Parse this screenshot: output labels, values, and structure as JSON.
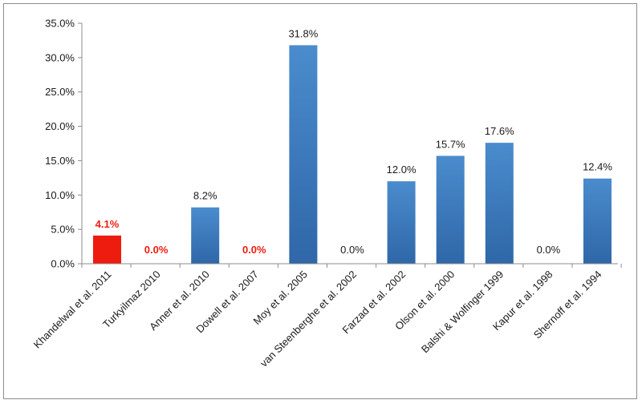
{
  "chart_data": {
    "type": "bar",
    "title": "",
    "xlabel": "",
    "ylabel": "",
    "ylim": [
      0,
      35
    ],
    "y_ticks": [
      "0.0%",
      "5.0%",
      "10.0%",
      "15.0%",
      "20.0%",
      "25.0%",
      "30.0%",
      "35.0%"
    ],
    "categories": [
      "Khandelwal et al. 2011",
      "Turkyilmaz 2010",
      "Anner et al. 2010",
      "Dowell et al. 2007",
      "Moy et al. 2005",
      "van Steenberghe et al. 2002",
      "Farzad et al. 2002",
      "Olson et al. 2000",
      "Balshi & Wolfinger 1999",
      "Kapur et al. 1998",
      "Shernoff et al. 1994"
    ],
    "values": [
      4.1,
      0.0,
      8.2,
      0.0,
      31.8,
      0.0,
      12.0,
      15.7,
      17.6,
      0.0,
      12.4
    ],
    "data_labels": [
      "4.1%",
      "0.0%",
      "8.2%",
      "0.0%",
      "31.8%",
      "0.0%",
      "12.0%",
      "15.7%",
      "17.6%",
      "0.0%",
      "12.4%"
    ],
    "highlighted": [
      true,
      true,
      false,
      true,
      false,
      false,
      false,
      false,
      false,
      false,
      false
    ],
    "colors": {
      "bar": "#3f7fc2",
      "bar_dark": "#2f67a8",
      "highlight": "#ee1c0f",
      "axis": "#8c8c8c",
      "text": "#1a1a1a"
    },
    "grid": false,
    "legend": "none"
  }
}
